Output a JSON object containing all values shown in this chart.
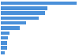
{
  "values": [
    61400000,
    37800000,
    35600000,
    30400000,
    20600000,
    15600000,
    7000000,
    5800000,
    5200000,
    4800000,
    3200000
  ],
  "bar_color": "#4a90d9",
  "background_color": "#ffffff",
  "grid_color": "#e8e8e8",
  "bar_height": 0.72
}
